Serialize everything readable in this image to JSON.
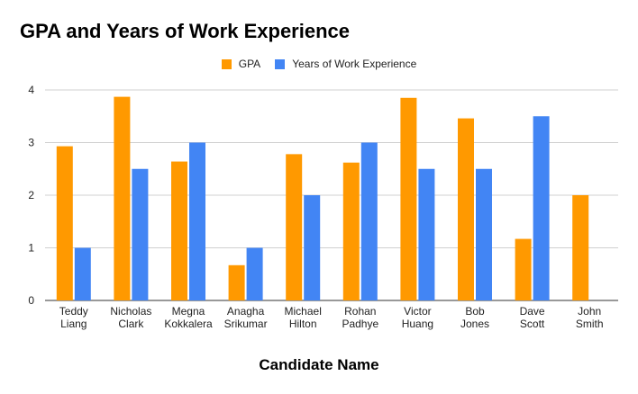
{
  "chart_data": {
    "type": "bar",
    "title": "GPA and Years of Work Experience",
    "xlabel": "Candidate Name",
    "ylabel": "",
    "ylim": [
      0,
      4
    ],
    "yticks": [
      "0",
      "1",
      "2",
      "3",
      "4"
    ],
    "grid": true,
    "legend_position": "top-center",
    "categories": [
      [
        "Teddy",
        "Liang"
      ],
      [
        "Nicholas",
        "Clark"
      ],
      [
        "Megna",
        "Kokkalera"
      ],
      [
        "Anagha",
        "Srikumar"
      ],
      [
        "Michael",
        "Hilton"
      ],
      [
        "Rohan",
        "Padhye"
      ],
      [
        "Victor",
        "Huang"
      ],
      [
        "Bob",
        "Jones"
      ],
      [
        "Dave",
        "Scott"
      ],
      [
        "John",
        "Smith"
      ]
    ],
    "series": [
      {
        "name": "GPA",
        "color": "#ff9900",
        "values": [
          2.93,
          3.87,
          2.64,
          0.67,
          2.78,
          2.62,
          3.85,
          3.46,
          1.17,
          2.0
        ]
      },
      {
        "name": "Years of Work Experience",
        "color": "#4285f4",
        "values": [
          1,
          2.5,
          3,
          1,
          2,
          3,
          2.5,
          2.5,
          3.5,
          null
        ]
      }
    ]
  }
}
